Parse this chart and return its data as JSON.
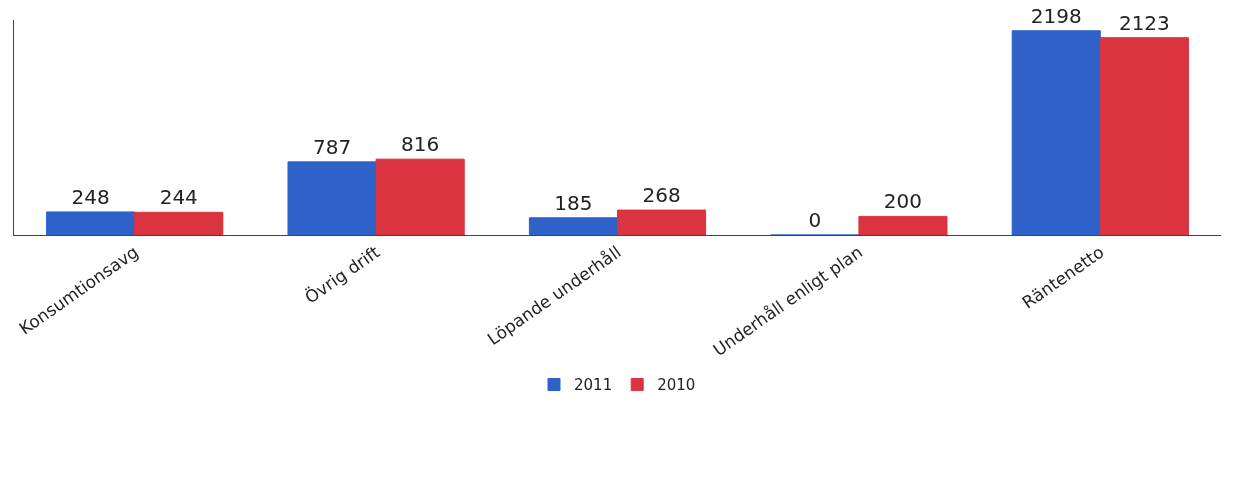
{
  "chart_data": {
    "type": "bar",
    "categories": [
      "Konsumtionsavg",
      "Övrig drift",
      "Löpande underhåll",
      "Underhåll enligt plan",
      "Räntenetto"
    ],
    "series": [
      {
        "name": "2011",
        "color": "#2e62c9",
        "values": [
          248,
          787,
          185,
          0,
          2198
        ]
      },
      {
        "name": "2010",
        "color": "#d9343f",
        "values": [
          244,
          816,
          268,
          200,
          2123
        ]
      }
    ],
    "data_labels": true,
    "legend": "bottom",
    "grid": false
  }
}
